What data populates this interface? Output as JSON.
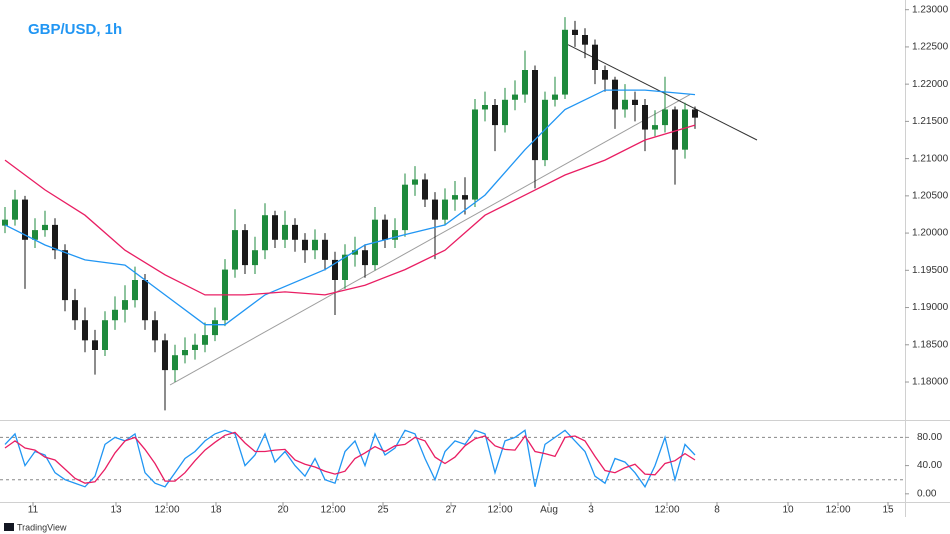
{
  "chart_data": [
    {
      "type": "candlestick",
      "title": "GBP/USD, 1h",
      "up_color": "#1e8a3c",
      "down_color": "#1a1a1a",
      "open": [
        1.201,
        1.2018,
        1.2045,
        1.1991,
        1.2004,
        1.2011,
        1.1977,
        1.191,
        1.1883,
        1.1856,
        1.1843,
        1.1883,
        1.1897,
        1.191,
        1.1937,
        1.1883,
        1.1856,
        1.1816,
        1.1836,
        1.1843,
        1.185,
        1.1863,
        1.1883,
        1.1951,
        1.2004,
        1.1957,
        1.1977,
        1.2024,
        1.1991,
        1.2011,
        1.1991,
        1.1977,
        1.1991,
        1.1964,
        1.1937,
        1.1971,
        1.1977,
        1.1957,
        1.2018,
        1.1991,
        1.2004,
        1.2065,
        1.2072,
        1.2045,
        1.2018,
        1.2045,
        1.2051,
        1.2045,
        1.2166,
        1.2172,
        1.2145,
        1.2179,
        1.2186,
        1.2219,
        1.2098,
        1.2179,
        1.2186,
        1.2273,
        1.2266,
        1.2253,
        1.2219,
        1.2206,
        1.2166,
        1.2179,
        1.2172,
        1.2139,
        1.2145,
        1.2166,
        1.2112,
        1.2166
      ],
      "high": [
        1.2035,
        1.2058,
        1.205,
        1.202,
        1.203,
        1.202,
        1.1985,
        1.1925,
        1.19,
        1.187,
        1.1895,
        1.1915,
        1.193,
        1.1955,
        1.1945,
        1.1895,
        1.1865,
        1.185,
        1.186,
        1.1865,
        1.188,
        1.19,
        1.1965,
        1.2032,
        1.2012,
        1.1995,
        1.204,
        1.203,
        1.203,
        1.202,
        1.2,
        1.2005,
        1.2,
        1.1975,
        1.1985,
        1.1995,
        1.1985,
        1.2035,
        1.2025,
        1.202,
        1.208,
        1.209,
        1.208,
        1.2055,
        1.206,
        1.207,
        1.2075,
        1.218,
        1.219,
        1.218,
        1.2195,
        1.2205,
        1.2245,
        1.2225,
        1.219,
        1.221,
        1.229,
        1.2285,
        1.2275,
        1.226,
        1.2225,
        1.221,
        1.22,
        1.219,
        1.218,
        1.2165,
        1.221,
        1.217,
        1.2175,
        1.217
      ],
      "low": [
        1.2,
        1.201,
        1.1925,
        1.198,
        1.1995,
        1.1965,
        1.1895,
        1.187,
        1.184,
        1.181,
        1.1835,
        1.187,
        1.188,
        1.19,
        1.187,
        1.184,
        1.1762,
        1.18,
        1.1825,
        1.183,
        1.184,
        1.1855,
        1.1875,
        1.194,
        1.1945,
        1.1945,
        1.1965,
        1.198,
        1.198,
        1.1975,
        1.196,
        1.1965,
        1.195,
        1.189,
        1.1925,
        1.1955,
        1.194,
        1.195,
        1.198,
        1.198,
        1.1995,
        1.205,
        1.2035,
        1.1965,
        1.201,
        1.203,
        1.2025,
        1.2035,
        1.215,
        1.211,
        1.2135,
        1.2165,
        1.2175,
        1.206,
        1.209,
        1.217,
        1.218,
        1.225,
        1.2235,
        1.22,
        1.219,
        1.214,
        1.2155,
        1.215,
        1.211,
        1.213,
        1.2135,
        1.2065,
        1.21,
        1.214
      ],
      "close": [
        1.2018,
        1.2045,
        1.1991,
        1.2004,
        1.2011,
        1.1977,
        1.191,
        1.1883,
        1.1856,
        1.1843,
        1.1883,
        1.1897,
        1.191,
        1.1937,
        1.1883,
        1.1856,
        1.1816,
        1.1836,
        1.1843,
        1.185,
        1.1863,
        1.1883,
        1.1951,
        1.2004,
        1.1957,
        1.1977,
        1.2024,
        1.1991,
        1.2011,
        1.1991,
        1.1977,
        1.1991,
        1.1964,
        1.1937,
        1.1971,
        1.1977,
        1.1957,
        1.2018,
        1.1991,
        1.2004,
        1.2065,
        1.2072,
        1.2045,
        1.2018,
        1.2045,
        1.2051,
        1.2045,
        1.2166,
        1.2172,
        1.2145,
        1.2179,
        1.2186,
        1.2219,
        1.2098,
        1.2179,
        1.2186,
        1.2273,
        1.2266,
        1.2253,
        1.2219,
        1.2206,
        1.2166,
        1.2179,
        1.2172,
        1.2139,
        1.2145,
        1.2166,
        1.2112,
        1.2166,
        1.2155
      ],
      "series": [
        {
          "color": "#2196f3",
          "x": [
            0,
            4,
            8,
            12,
            16,
            20,
            22,
            26,
            32,
            36,
            40,
            44,
            48,
            52,
            56,
            60,
            64,
            69
          ],
          "values": [
            1.2011,
            1.1984,
            1.1964,
            1.1957,
            1.1917,
            1.1877,
            1.1877,
            1.1917,
            1.1951,
            1.1984,
            1.1998,
            1.2011,
            1.2051,
            1.2112,
            1.2166,
            1.2192,
            1.2192,
            1.2186
          ]
        },
        {
          "color": "#e91e63",
          "x": [
            0,
            4,
            8,
            12,
            16,
            20,
            24,
            28,
            32,
            36,
            40,
            44,
            48,
            52,
            56,
            60,
            64,
            69
          ],
          "values": [
            1.2098,
            1.2058,
            1.2024,
            1.1977,
            1.1944,
            1.1917,
            1.1917,
            1.1921,
            1.1917,
            1.193,
            1.1951,
            1.1977,
            1.2024,
            1.2051,
            1.2078,
            1.2098,
            1.2125,
            1.2145
          ]
        }
      ],
      "trendlines": [
        {
          "color": "#9e9e9e",
          "x": [
            16.5,
            68.5
          ],
          "y": [
            1.1796,
            1.2186
          ]
        },
        {
          "color": "#333333",
          "x": [
            56.3,
            75.2
          ],
          "y": [
            1.2253,
            1.2125
          ]
        }
      ],
      "xlim": [
        -0.5,
        90
      ],
      "xticks": [
        {
          "value": 2.8,
          "label": "11"
        },
        {
          "value": 11.1,
          "label": "13"
        },
        {
          "value": 16.2,
          "label": "12:00"
        },
        {
          "value": 21.1,
          "label": "18"
        },
        {
          "value": 27.8,
          "label": "20"
        },
        {
          "value": 32.8,
          "label": "12:00"
        },
        {
          "value": 37.8,
          "label": "25"
        },
        {
          "value": 44.6,
          "label": "27"
        },
        {
          "value": 49.5,
          "label": "12:00"
        },
        {
          "value": 54.4,
          "label": "Aug"
        },
        {
          "value": 58.6,
          "label": "3"
        },
        {
          "value": 66.2,
          "label": "12:00"
        },
        {
          "value": 71.2,
          "label": "8"
        },
        {
          "value": 78.3,
          "label": "10"
        },
        {
          "value": 83.3,
          "label": "12:00"
        },
        {
          "value": 88.3,
          "label": "15"
        }
      ],
      "ylim": [
        1.1749,
        1.2313
      ],
      "yticks": [
        {
          "value": 1.18,
          "label": "1.18000"
        },
        {
          "value": 1.185,
          "label": "1.18500"
        },
        {
          "value": 1.19,
          "label": "1.19000"
        },
        {
          "value": 1.195,
          "label": "1.19500"
        },
        {
          "value": 1.2,
          "label": "1.20000"
        },
        {
          "value": 1.205,
          "label": "1.20500"
        },
        {
          "value": 1.21,
          "label": "1.21000"
        },
        {
          "value": 1.215,
          "label": "1.21500"
        },
        {
          "value": 1.22,
          "label": "1.22000"
        },
        {
          "value": 1.225,
          "label": "1.22500"
        },
        {
          "value": 1.23,
          "label": "1.23000"
        }
      ],
      "footer": "TradingView"
    },
    {
      "type": "line",
      "series": [
        {
          "color": "#2196f3",
          "values": [
            70,
            85,
            40,
            60,
            55,
            30,
            20,
            15,
            10,
            25,
            70,
            80,
            75,
            85,
            30,
            15,
            10,
            30,
            50,
            60,
            75,
            85,
            90,
            85,
            40,
            55,
            85,
            45,
            60,
            40,
            25,
            50,
            20,
            15,
            60,
            75,
            40,
            85,
            55,
            65,
            90,
            85,
            50,
            20,
            60,
            75,
            70,
            90,
            85,
            30,
            75,
            80,
            90,
            10,
            70,
            80,
            90,
            75,
            60,
            25,
            15,
            50,
            45,
            30,
            10,
            40,
            80,
            20,
            70,
            55
          ]
        },
        {
          "color": "#e91e63",
          "values": [
            65,
            75,
            65,
            62,
            52,
            48,
            35,
            22,
            15,
            17,
            35,
            58,
            75,
            80,
            63,
            43,
            18,
            18,
            30,
            47,
            62,
            73,
            83,
            87,
            72,
            60,
            60,
            62,
            63,
            48,
            42,
            38,
            32,
            28,
            32,
            50,
            58,
            67,
            60,
            68,
            70,
            80,
            75,
            52,
            43,
            52,
            68,
            78,
            82,
            68,
            63,
            62,
            82,
            60,
            57,
            53,
            80,
            82,
            75,
            53,
            33,
            30,
            37,
            42,
            28,
            27,
            43,
            47,
            57,
            48
          ]
        }
      ],
      "bands": [
        20,
        80
      ],
      "ylim": [
        -11.6,
        101.8
      ],
      "yticks": [
        {
          "value": 0,
          "label": "0.00"
        },
        {
          "value": 40,
          "label": "40.00"
        },
        {
          "value": 80,
          "label": "80.00"
        }
      ]
    }
  ]
}
